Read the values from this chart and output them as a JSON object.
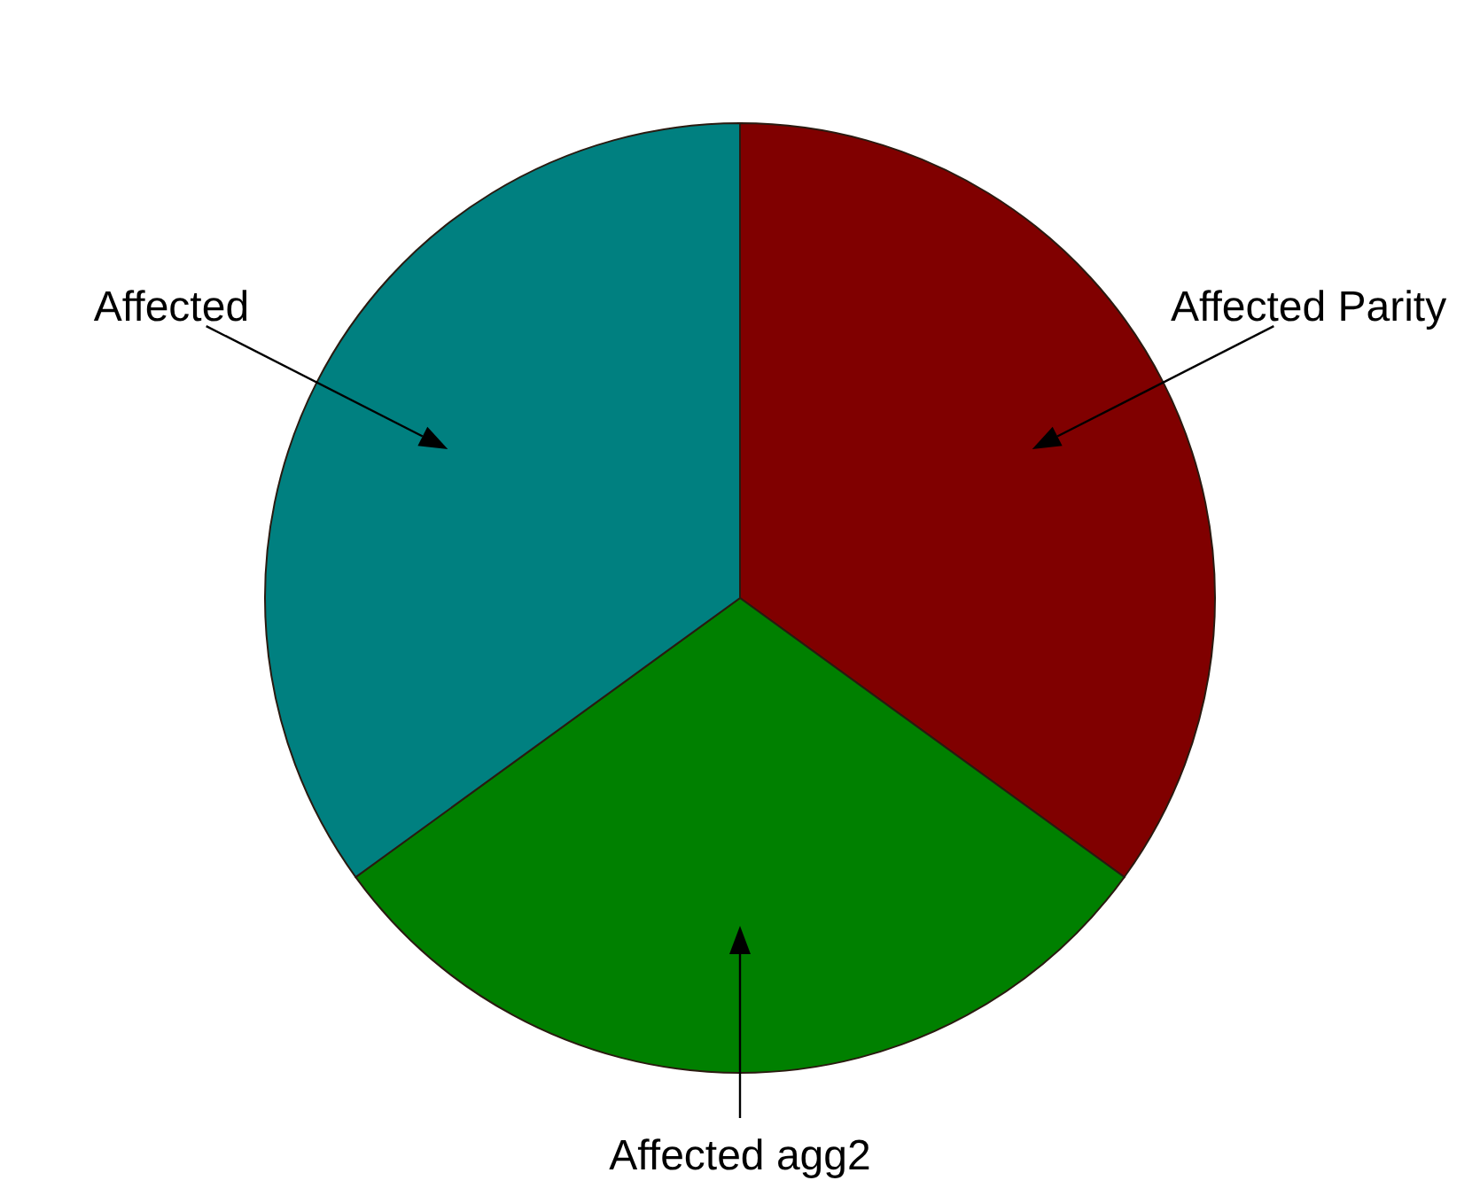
{
  "chart_data": {
    "type": "pie",
    "categories": [
      "Affected Parity",
      "Affected agg2",
      "Affected"
    ],
    "values": [
      35,
      30,
      35
    ],
    "colors": [
      "#800000",
      "#008000",
      "#008080"
    ]
  }
}
